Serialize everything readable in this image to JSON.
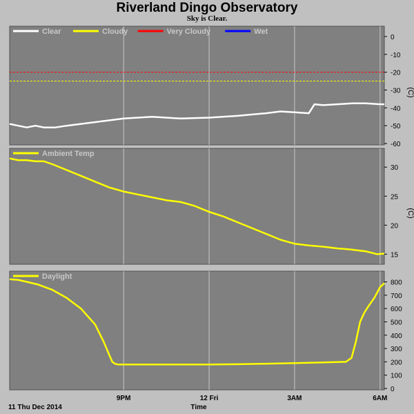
{
  "header": {
    "title": "Riverland Dingo Observatory",
    "subtitle": "Sky is Clear."
  },
  "footer": {
    "date_label": "11 Thu Dec 2014",
    "xlabel": "Time"
  },
  "colors": {
    "plot_bg": "#808080",
    "frame": "#c0c0c0",
    "clear": "#ffffff",
    "cloudy": "#ffff00",
    "very_cloudy": "#ff0000",
    "wet": "#0000ff",
    "ambient": "#ffff00",
    "daylight": "#ffff00"
  },
  "chart_data": [
    {
      "type": "line",
      "xlim": [
        17.0,
        30.15
      ],
      "x_ticks": [
        {
          "x": 21,
          "label": "9PM"
        },
        {
          "x": 24,
          "label": "12 Fri"
        },
        {
          "x": 27,
          "label": "3AM"
        },
        {
          "x": 30,
          "label": "6AM"
        }
      ],
      "ylim": [
        -60,
        5
      ],
      "y_ticks": [
        0,
        -10,
        -20,
        -30,
        -40,
        -50,
        -60
      ],
      "unit": "(C)",
      "legend": [
        "Clear",
        "Cloudy",
        "Very Cloudy",
        "Wet"
      ],
      "thresholds": [
        {
          "name": "Very Cloudy",
          "y": -20
        },
        {
          "name": "Cloudy",
          "y": -25
        }
      ],
      "series": [
        {
          "name": "Clear",
          "x": [
            17.0,
            17.3,
            17.6,
            17.9,
            18.2,
            18.6,
            19.0,
            19.5,
            20.0,
            20.5,
            21.0,
            21.5,
            22.0,
            23.0,
            24.0,
            25.0,
            26.0,
            26.5,
            27.0,
            27.5,
            27.7,
            28.0,
            28.5,
            29.0,
            29.5,
            30.0,
            30.15
          ],
          "y": [
            -49,
            -50,
            -51,
            -50,
            -51,
            -51,
            -50,
            -49,
            -48,
            -47,
            -46,
            -45.5,
            -45,
            -46,
            -45.5,
            -44.5,
            -43,
            -42,
            -42.5,
            -43,
            -38,
            -38.5,
            -38,
            -37.5,
            -37.5,
            -38,
            -38
          ]
        }
      ]
    },
    {
      "type": "line",
      "xlim": [
        17.0,
        30.15
      ],
      "x_ticks": [
        {
          "x": 21,
          "label": "9PM"
        },
        {
          "x": 24,
          "label": "12 Fri"
        },
        {
          "x": 27,
          "label": "3AM"
        },
        {
          "x": 30,
          "label": "6AM"
        }
      ],
      "ylim": [
        13.5,
        33
      ],
      "y_ticks": [
        30,
        25,
        20,
        15
      ],
      "unit": "(C)",
      "legend": [
        "Ambient Temp"
      ],
      "series": [
        {
          "name": "Ambient Temp",
          "x": [
            17.0,
            17.3,
            17.6,
            17.9,
            18.2,
            18.5,
            19.0,
            19.5,
            20.0,
            20.5,
            21.0,
            21.5,
            22.0,
            22.5,
            23.0,
            23.5,
            24.0,
            24.5,
            25.0,
            25.5,
            26.0,
            26.5,
            27.0,
            27.5,
            28.0,
            28.5,
            29.0,
            29.5,
            29.9,
            30.15
          ],
          "y": [
            31.5,
            31.2,
            31.2,
            31.0,
            31.0,
            30.5,
            29.5,
            28.5,
            27.5,
            26.5,
            25.8,
            25.3,
            24.8,
            24.3,
            24.0,
            23.3,
            22.3,
            21.5,
            20.5,
            19.5,
            18.5,
            17.5,
            16.8,
            16.5,
            16.3,
            16.0,
            15.8,
            15.5,
            15.0,
            15.1
          ]
        }
      ]
    },
    {
      "type": "line",
      "xlim": [
        17.0,
        30.15
      ],
      "x_ticks": [
        {
          "x": 21,
          "label": "9PM"
        },
        {
          "x": 24,
          "label": "12 Fri"
        },
        {
          "x": 27,
          "label": "3AM"
        },
        {
          "x": 30,
          "label": "6AM"
        }
      ],
      "ylim": [
        0,
        870
      ],
      "y_ticks": [
        800,
        700,
        600,
        500,
        400,
        300,
        200,
        100,
        0
      ],
      "legend": [
        "Daylight"
      ],
      "series": [
        {
          "name": "Daylight",
          "x": [
            17.0,
            17.3,
            17.6,
            18.0,
            18.5,
            19.0,
            19.5,
            20.0,
            20.3,
            20.5,
            20.6,
            20.7,
            20.8,
            20.9,
            21.0,
            21.5,
            22.0,
            23.0,
            24.0,
            25.0,
            26.0,
            27.0,
            28.0,
            28.8,
            29.0,
            29.15,
            29.3,
            29.45,
            29.6,
            29.8,
            30.0,
            30.15
          ],
          "y": [
            820,
            815,
            800,
            780,
            740,
            680,
            600,
            480,
            350,
            250,
            200,
            185,
            180,
            180,
            180,
            180,
            180,
            180,
            180,
            182,
            186,
            190,
            195,
            200,
            230,
            350,
            500,
            570,
            620,
            680,
            760,
            790
          ]
        }
      ]
    }
  ]
}
